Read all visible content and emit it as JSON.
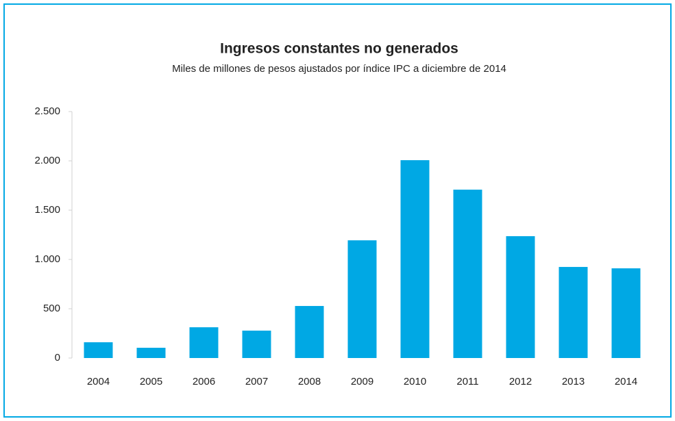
{
  "chart_data": {
    "type": "bar",
    "title": "Ingresos constantes no generados",
    "subtitle": "Miles de millones de pesos ajustados por índice IPC a diciembre de 2014",
    "categories": [
      "2004",
      "2005",
      "2006",
      "2007",
      "2008",
      "2009",
      "2010",
      "2011",
      "2012",
      "2013",
      "2014"
    ],
    "values": [
      160,
      104,
      312,
      278,
      528,
      1194,
      2007,
      1708,
      1236,
      924,
      910
    ],
    "color": "#00a8e4",
    "ylim": [
      0,
      2500
    ],
    "yticks": [
      0,
      500,
      {
        "value": 1000,
        "label": "1.000"
      },
      {
        "value": 1500,
        "label": "1.500"
      },
      {
        "value": 2000,
        "label": "2.000"
      },
      {
        "value": 2500,
        "label": "2.500"
      }
    ],
    "grid": false
  }
}
